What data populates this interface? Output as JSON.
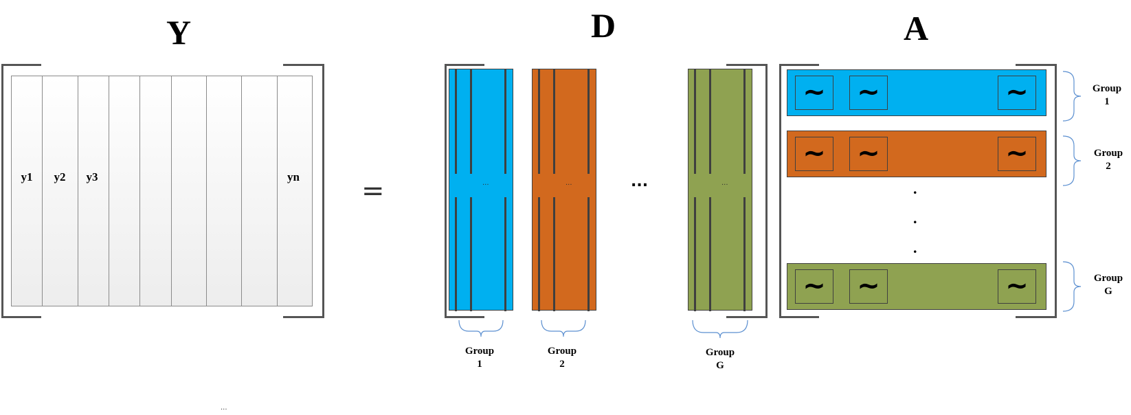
{
  "titles": {
    "y": "Y",
    "d": "D",
    "a": "A"
  },
  "y_matrix": {
    "columns": [
      "y1",
      "y2",
      "y3",
      "",
      "",
      "",
      "",
      "",
      "yn"
    ],
    "bottom_dots": "..."
  },
  "equals": "=",
  "d_matrix": {
    "blocks": [
      {
        "color": "#00B0F0",
        "dots": "...",
        "label_top": "Group",
        "label_bottom": "1"
      },
      {
        "color": "#D2691E",
        "dots": "...",
        "label_top": "Group",
        "label_bottom": "2"
      },
      {
        "color": "#8FA251",
        "dots": "...",
        "label_top": "Group",
        "label_bottom": "G"
      }
    ],
    "between_dots": "..."
  },
  "a_matrix": {
    "rows": [
      {
        "color": "#00B0F0",
        "symbols": [
          "~",
          "~",
          "~"
        ],
        "label_top": "Group",
        "label_bottom": "1"
      },
      {
        "color": "#D2691E",
        "symbols": [
          "~",
          "~",
          "~"
        ],
        "label_top": "Group",
        "label_bottom": "2"
      },
      {
        "color": "#8FA251",
        "symbols": [
          "~",
          "~",
          "~"
        ],
        "label_top": "Group",
        "label_bottom": "G"
      }
    ],
    "vertical_dots": [
      ".",
      ".",
      "."
    ]
  },
  "colors": {
    "line": "#3f3f3f",
    "bracket": "#555555",
    "brace": "#5b8fd0"
  }
}
